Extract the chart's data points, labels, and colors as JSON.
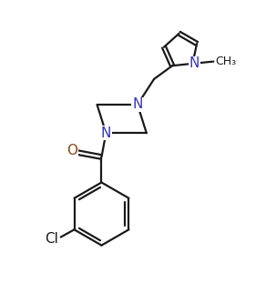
{
  "bg_color": "#ffffff",
  "bond_color": "#1a1a1a",
  "N_color": "#3333cc",
  "O_color": "#8b4513",
  "Cl_color": "#1a1a1a",
  "bond_width": 1.6,
  "font_size_atom": 10,
  "figsize": [
    2.92,
    3.22
  ],
  "dpi": 100,
  "xlim": [
    0.0,
    8.5
  ],
  "ylim": [
    0.5,
    10.2
  ]
}
